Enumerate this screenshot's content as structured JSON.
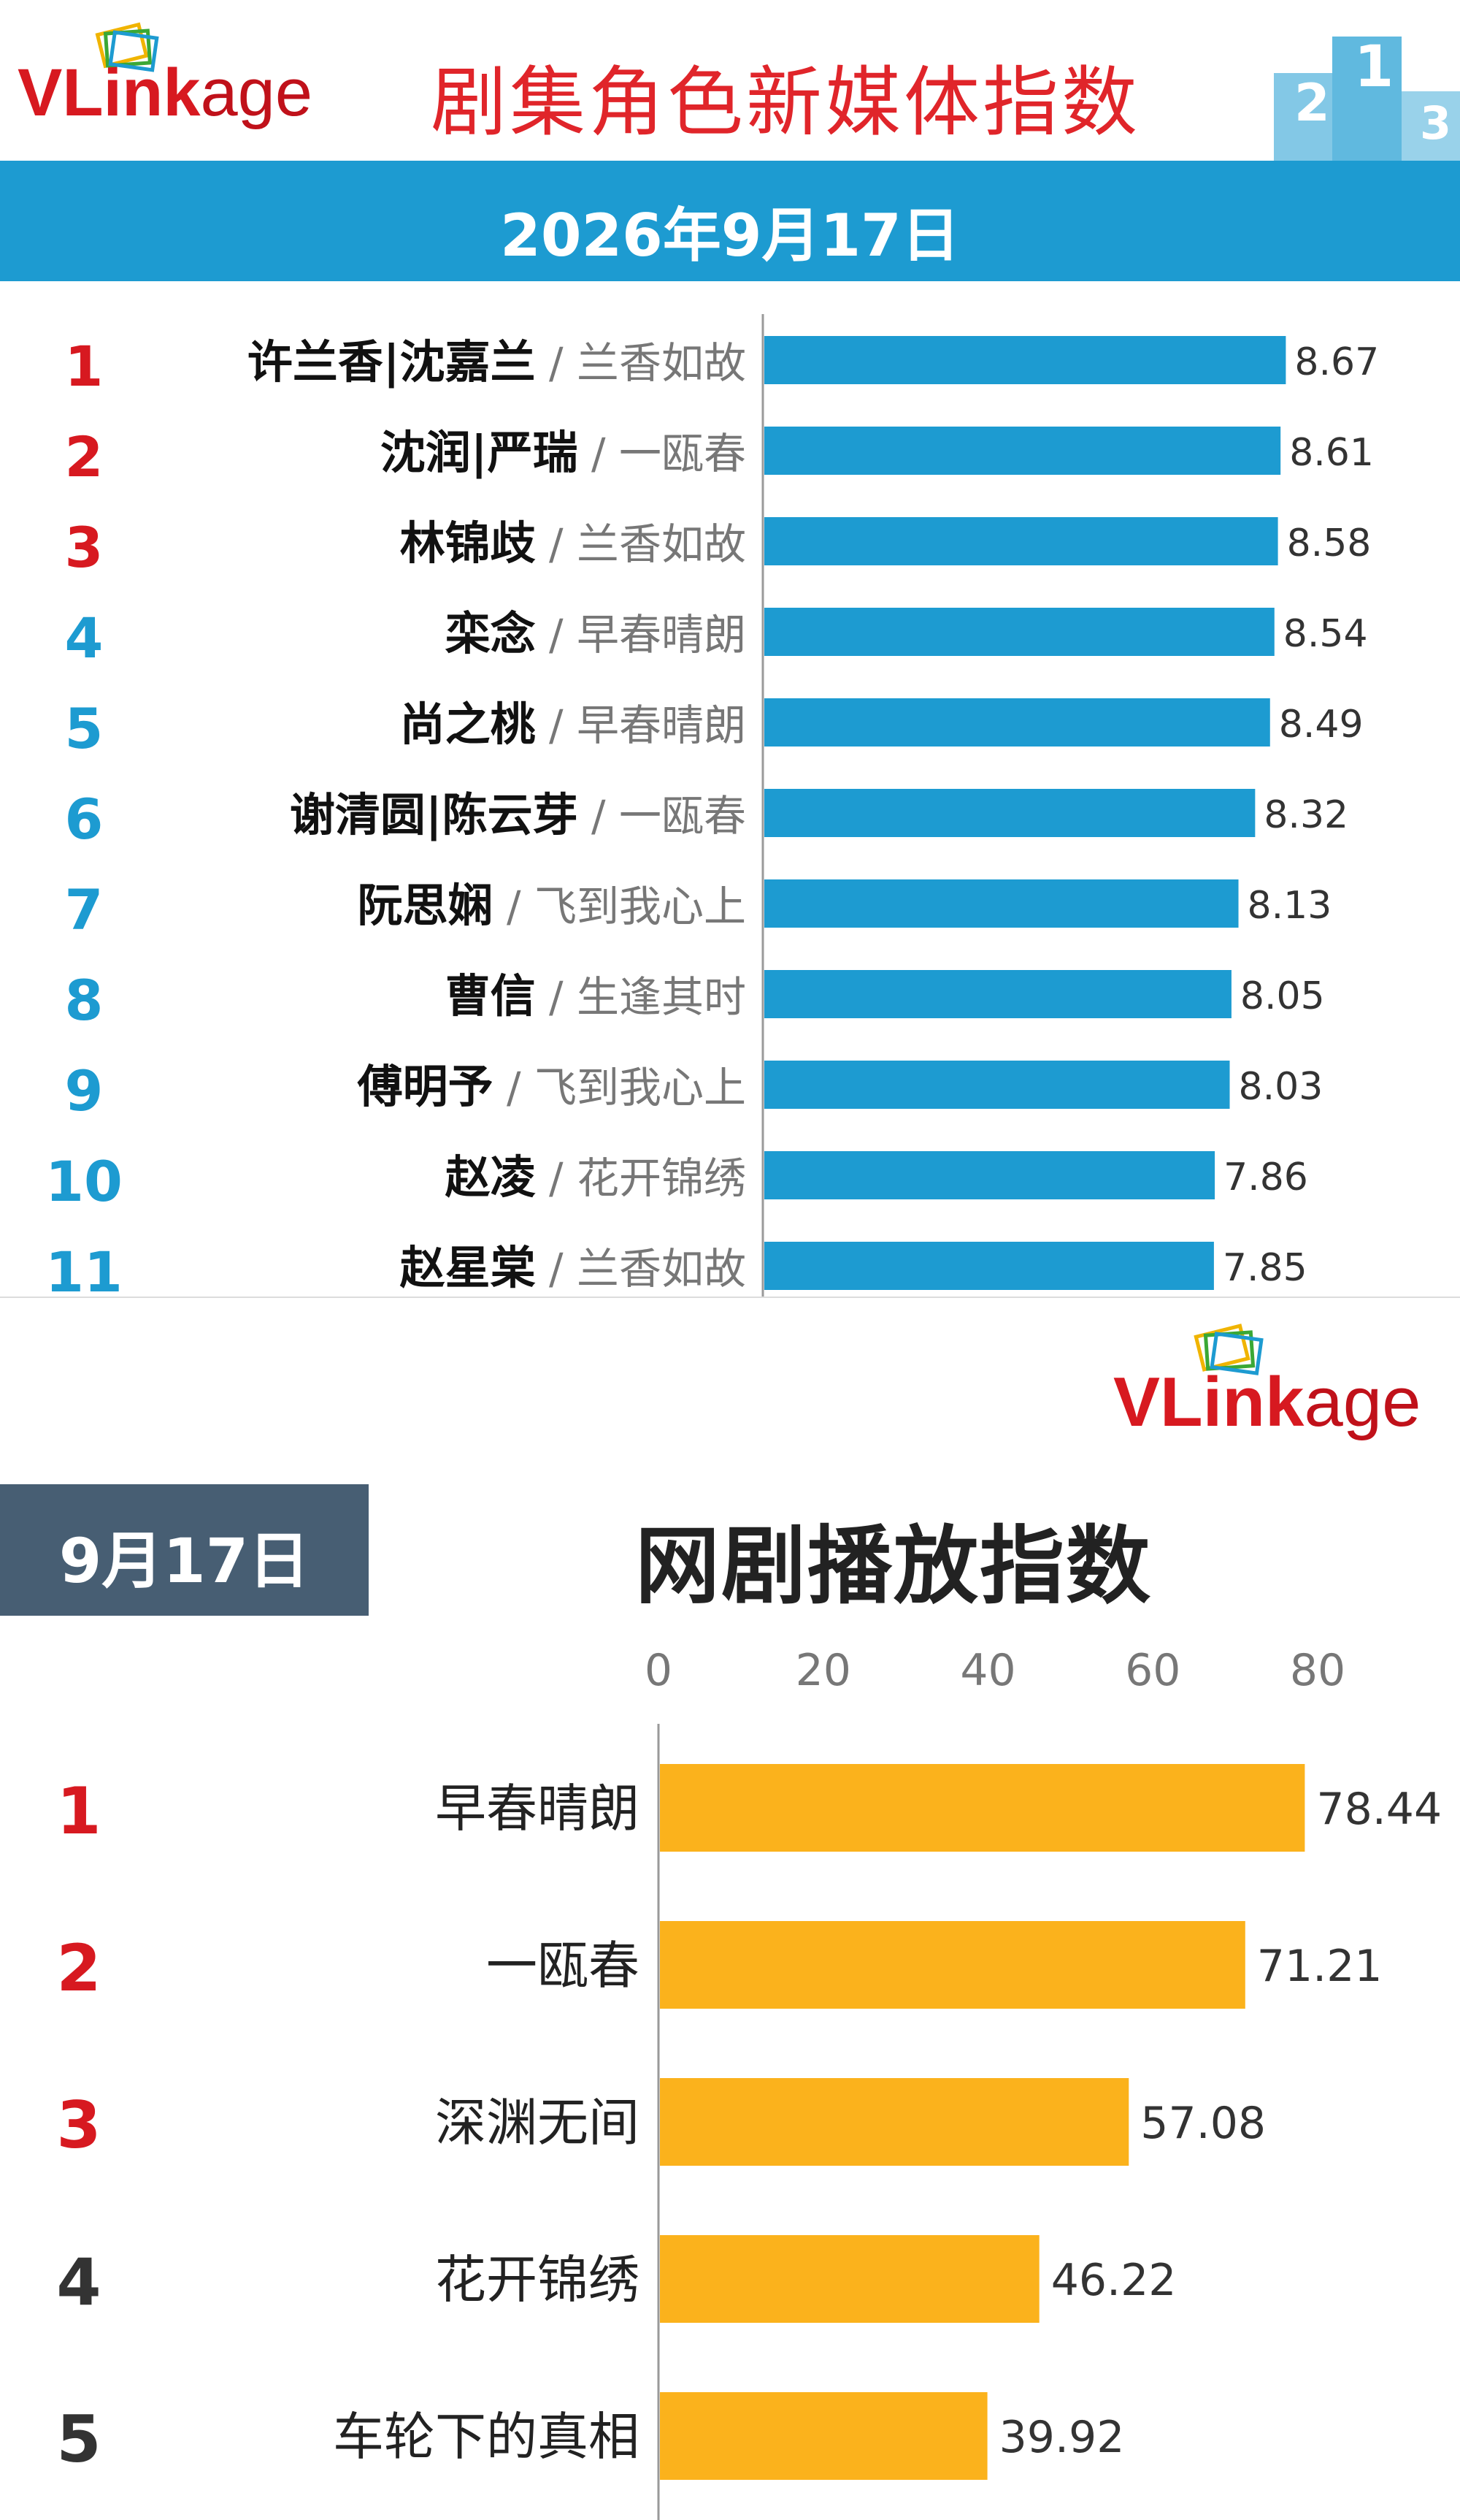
{
  "top": {
    "logo_text_vl": "VLink",
    "logo_text_age": "age",
    "title": "剧集角色新媒体指数",
    "date": "2026年9月17日"
  },
  "bottom": {
    "logo_text_vl": "VLink",
    "logo_text_age": "age",
    "date_badge": "9月17日",
    "title": "网剧播放指数"
  },
  "colors": {
    "top_bar": "#1d9bd1",
    "bottom_bar": "#fbb21c",
    "rank_top3": "#d71920",
    "rank_other_top": "#1d9bd1",
    "rank_other_bottom": "#333333",
    "badge": "#475e73",
    "title_red": "#e0252a"
  },
  "chart_data": [
    {
      "type": "bar",
      "orientation": "horizontal",
      "title": "剧集角色新媒体指数",
      "categories": [
        "许兰香|沈嘉兰",
        "沈润|严瑞",
        "林锦歧",
        "栾念",
        "尚之桃",
        "谢清圆|陈云芽",
        "阮思娴",
        "曹信",
        "傅明予",
        "赵凌",
        "赵星棠"
      ],
      "dramas": [
        "兰香如故",
        "一瓯春",
        "兰香如故",
        "早春晴朗",
        "早春晴朗",
        "一瓯春",
        "飞到我心上",
        "生逢其时",
        "飞到我心上",
        "花开锦绣",
        "兰香如故"
      ],
      "ranks": [
        "1",
        "2",
        "3",
        "4",
        "5",
        "6",
        "7",
        "8",
        "9",
        "10",
        "11"
      ],
      "values": [
        8.67,
        8.61,
        8.58,
        8.54,
        8.49,
        8.32,
        8.13,
        8.05,
        8.03,
        7.86,
        7.85
      ],
      "value_labels": [
        "8.67",
        "8.61",
        "8.58",
        "8.54",
        "8.49",
        "8.32",
        "8.13",
        "8.05",
        "8.03",
        "7.86",
        "7.85"
      ],
      "xlim": [
        7.6,
        8.7
      ],
      "grid": false,
      "axis_ticks_shown": false
    },
    {
      "type": "bar",
      "orientation": "horizontal",
      "title": "网剧播放指数",
      "categories": [
        "早春晴朗",
        "一瓯春",
        "深渊无间",
        "花开锦绣",
        "车轮下的真相"
      ],
      "ranks": [
        "1",
        "2",
        "3",
        "4",
        "5"
      ],
      "values": [
        78.44,
        71.21,
        57.08,
        46.22,
        39.92
      ],
      "value_labels": [
        "78.44",
        "71.21",
        "57.08",
        "46.22",
        "39.92"
      ],
      "xlim": [
        0,
        90
      ],
      "x_ticks": [
        "0",
        "20",
        "40",
        "60",
        "80"
      ],
      "axis_position": "top",
      "grid": false
    }
  ]
}
